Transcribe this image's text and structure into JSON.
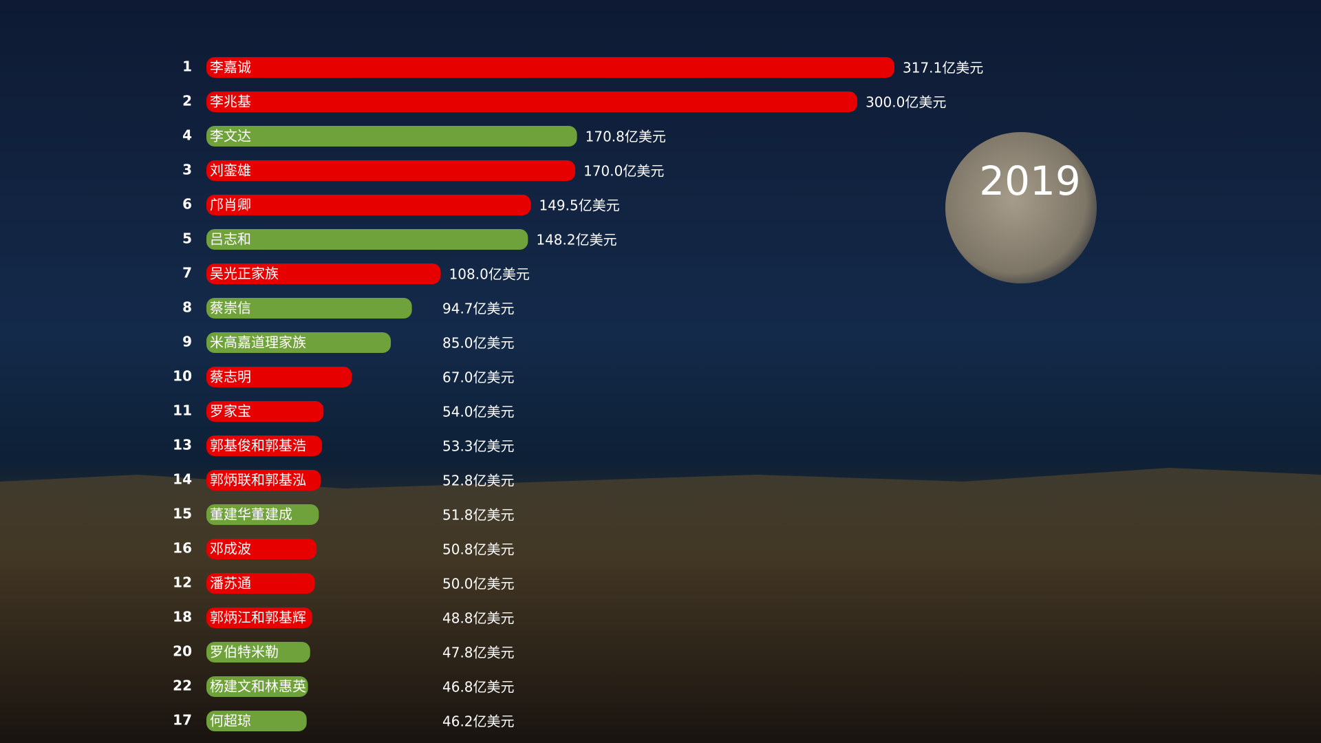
{
  "chart_data": {
    "type": "bar",
    "orientation": "horizontal",
    "annotation": "2019",
    "ranks": [
      "1",
      "2",
      "4",
      "3",
      "6",
      "5",
      "7",
      "8",
      "9",
      "10",
      "11",
      "13",
      "14",
      "15",
      "16",
      "12",
      "18",
      "20",
      "22",
      "17"
    ],
    "categories": [
      "李嘉诚",
      "李兆基",
      "李文达",
      "刘銮雄",
      "邝肖卿",
      "吕志和",
      "吴光正家族",
      "蔡崇信",
      "米高嘉道理家族",
      "蔡志明",
      "罗家宝",
      "郭基俊和郭基浩",
      "郭炳联和郭基泓",
      "董建华董建成",
      "邓成波",
      "潘苏通",
      "郭炳江和郭基辉",
      "罗伯特米勒",
      "杨建文和林惠英",
      "何超琼"
    ],
    "values": [
      317.1,
      300.0,
      170.8,
      170.0,
      149.5,
      148.2,
      108.0,
      94.7,
      85.0,
      67.0,
      54.0,
      53.3,
      52.8,
      51.8,
      50.8,
      50.0,
      48.8,
      47.8,
      46.8,
      46.2
    ],
    "value_labels": [
      "317.1亿美元",
      "300.0亿美元",
      "170.8亿美元",
      "170.0亿美元",
      "149.5亿美元",
      "148.2亿美元",
      "108.0亿美元",
      "94.7亿美元",
      "85.0亿美元",
      "67.0亿美元",
      "54.0亿美元",
      "53.3亿美元",
      "52.8亿美元",
      "51.8亿美元",
      "50.8亿美元",
      "50.0亿美元",
      "48.8亿美元",
      "47.8亿美元",
      "46.8亿美元",
      "46.2亿美元"
    ],
    "colors": [
      "#e60000",
      "#e60000",
      "#6fa23a",
      "#e60000",
      "#e60000",
      "#6fa23a",
      "#e60000",
      "#6fa23a",
      "#6fa23a",
      "#e60000",
      "#e60000",
      "#e60000",
      "#e60000",
      "#6fa23a",
      "#e60000",
      "#e60000",
      "#e60000",
      "#6fa23a",
      "#6fa23a",
      "#6fa23a"
    ]
  }
}
